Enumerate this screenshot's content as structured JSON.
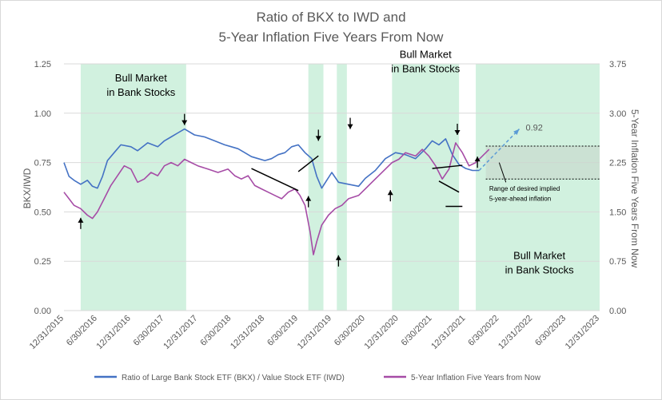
{
  "chart_data": {
    "type": "line",
    "title": [
      "Ratio of BKX to IWD and",
      "5-Year Inflation Five Years From Now"
    ],
    "ylabel": "BKX/IWD",
    "y2label": "5-Year Inflation Five Years From Now",
    "ylim": [
      0,
      1.25
    ],
    "y2lim": [
      0,
      3.75
    ],
    "y_ticks": [
      "0.00",
      "0.25",
      "0.50",
      "0.75",
      "1.00",
      "1.25"
    ],
    "y2_ticks": [
      "0.00",
      "0.75",
      "1.50",
      "2.25",
      "3.00",
      "3.75"
    ],
    "x_ticks": [
      "12/31/2015",
      "6/30/2016",
      "12/31/2016",
      "6/30/2017",
      "12/31/2017",
      "6/30/2018",
      "12/31/2018",
      "6/30/2019",
      "12/31/2019",
      "6/30/2020",
      "12/31/2020",
      "6/30/2021",
      "12/31/2021",
      "6/30/2022",
      "12/31/2022",
      "6/30/2023",
      "12/31/2023"
    ],
    "grid": true,
    "legend_position": "bottom",
    "series": [
      {
        "name": "Ratio of Large Bank Stock ETF (BKX) / Value Stock ETF (IWD)",
        "color": "#4472c4",
        "axis": "left",
        "points": [
          [
            0,
            0.75
          ],
          [
            0.15,
            0.68
          ],
          [
            0.3,
            0.66
          ],
          [
            0.5,
            0.64
          ],
          [
            0.7,
            0.66
          ],
          [
            0.85,
            0.63
          ],
          [
            1.0,
            0.62
          ],
          [
            1.15,
            0.68
          ],
          [
            1.3,
            0.76
          ],
          [
            1.5,
            0.8
          ],
          [
            1.7,
            0.84
          ],
          [
            2.0,
            0.83
          ],
          [
            2.2,
            0.81
          ],
          [
            2.5,
            0.85
          ],
          [
            2.8,
            0.83
          ],
          [
            3.0,
            0.86
          ],
          [
            3.2,
            0.88
          ],
          [
            3.4,
            0.9
          ],
          [
            3.6,
            0.92
          ],
          [
            3.9,
            0.89
          ],
          [
            4.2,
            0.88
          ],
          [
            4.5,
            0.86
          ],
          [
            4.8,
            0.84
          ],
          [
            5.0,
            0.83
          ],
          [
            5.2,
            0.82
          ],
          [
            5.4,
            0.8
          ],
          [
            5.6,
            0.78
          ],
          [
            5.8,
            0.77
          ],
          [
            6.0,
            0.76
          ],
          [
            6.2,
            0.77
          ],
          [
            6.4,
            0.79
          ],
          [
            6.6,
            0.8
          ],
          [
            6.8,
            0.83
          ],
          [
            7.0,
            0.84
          ],
          [
            7.2,
            0.8
          ],
          [
            7.4,
            0.77
          ],
          [
            7.55,
            0.68
          ],
          [
            7.7,
            0.62
          ],
          [
            7.85,
            0.66
          ],
          [
            8.0,
            0.7
          ],
          [
            8.2,
            0.65
          ],
          [
            8.5,
            0.64
          ],
          [
            8.8,
            0.63
          ],
          [
            9.0,
            0.67
          ],
          [
            9.3,
            0.71
          ],
          [
            9.6,
            0.77
          ],
          [
            9.9,
            0.8
          ],
          [
            10.2,
            0.79
          ],
          [
            10.5,
            0.77
          ],
          [
            10.8,
            0.82
          ],
          [
            11.0,
            0.86
          ],
          [
            11.2,
            0.84
          ],
          [
            11.4,
            0.87
          ],
          [
            11.6,
            0.79
          ],
          [
            11.8,
            0.74
          ],
          [
            12.0,
            0.72
          ],
          [
            12.2,
            0.71
          ],
          [
            12.4,
            0.71
          ]
        ]
      },
      {
        "name": "5-Year Inflation Five Years from Now",
        "color": "#a64ca6",
        "axis": "right",
        "points": [
          [
            0,
            1.8
          ],
          [
            0.15,
            1.7
          ],
          [
            0.3,
            1.6
          ],
          [
            0.5,
            1.55
          ],
          [
            0.7,
            1.45
          ],
          [
            0.85,
            1.4
          ],
          [
            1.0,
            1.5
          ],
          [
            1.2,
            1.7
          ],
          [
            1.4,
            1.9
          ],
          [
            1.6,
            2.05
          ],
          [
            1.8,
            2.2
          ],
          [
            2.0,
            2.15
          ],
          [
            2.2,
            1.95
          ],
          [
            2.4,
            2.0
          ],
          [
            2.6,
            2.1
          ],
          [
            2.8,
            2.05
          ],
          [
            3.0,
            2.2
          ],
          [
            3.2,
            2.25
          ],
          [
            3.4,
            2.2
          ],
          [
            3.6,
            2.3
          ],
          [
            3.8,
            2.25
          ],
          [
            4.0,
            2.2
          ],
          [
            4.3,
            2.15
          ],
          [
            4.6,
            2.1
          ],
          [
            4.9,
            2.15
          ],
          [
            5.1,
            2.05
          ],
          [
            5.3,
            2.0
          ],
          [
            5.5,
            2.05
          ],
          [
            5.7,
            1.9
          ],
          [
            5.9,
            1.85
          ],
          [
            6.1,
            1.8
          ],
          [
            6.3,
            1.75
          ],
          [
            6.5,
            1.7
          ],
          [
            6.7,
            1.8
          ],
          [
            6.9,
            1.85
          ],
          [
            7.05,
            1.75
          ],
          [
            7.2,
            1.6
          ],
          [
            7.35,
            1.2
          ],
          [
            7.45,
            0.85
          ],
          [
            7.55,
            1.05
          ],
          [
            7.7,
            1.3
          ],
          [
            7.9,
            1.45
          ],
          [
            8.1,
            1.55
          ],
          [
            8.3,
            1.6
          ],
          [
            8.5,
            1.7
          ],
          [
            8.8,
            1.75
          ],
          [
            9.0,
            1.85
          ],
          [
            9.2,
            1.95
          ],
          [
            9.4,
            2.05
          ],
          [
            9.6,
            2.15
          ],
          [
            9.8,
            2.25
          ],
          [
            10.0,
            2.3
          ],
          [
            10.2,
            2.4
          ],
          [
            10.5,
            2.35
          ],
          [
            10.7,
            2.45
          ],
          [
            10.9,
            2.35
          ],
          [
            11.1,
            2.2
          ],
          [
            11.3,
            2.0
          ],
          [
            11.5,
            2.15
          ],
          [
            11.7,
            2.55
          ],
          [
            11.9,
            2.4
          ],
          [
            12.1,
            2.2
          ],
          [
            12.3,
            2.25
          ],
          [
            12.5,
            2.35
          ],
          [
            12.7,
            2.45
          ]
        ]
      }
    ],
    "projection": {
      "label": "0.92",
      "from": [
        12.4,
        0.71
      ],
      "to": [
        13.6,
        0.92
      ]
    },
    "band": {
      "label": [
        "Range of desired implied",
        "5-year-ahead inflation"
      ],
      "range": [
        2.0,
        2.5
      ]
    },
    "shaded_periods": [
      [
        0.5,
        3.65
      ],
      [
        7.3,
        7.75
      ],
      [
        8.15,
        8.45
      ],
      [
        9.8,
        11.8
      ],
      [
        12.3,
        16
      ]
    ],
    "annotations": [
      {
        "text": [
          "Bull Market",
          "in Bank Stocks"
        ],
        "x": 2.3,
        "y": 1.16
      },
      {
        "text": [
          "Bull Market",
          "in Bank Stocks"
        ],
        "x": 10.8,
        "y": 1.28
      },
      {
        "text": [
          "Bull Market",
          "in Bank Stocks"
        ],
        "x": 14.2,
        "y": 0.26
      }
    ],
    "arrows": [
      {
        "x": 0.5,
        "y": 0.47,
        "dir": "up"
      },
      {
        "x": 3.6,
        "y": 0.94,
        "dir": "down"
      },
      {
        "x": 7.3,
        "y": 0.58,
        "dir": "up"
      },
      {
        "x": 7.6,
        "y": 0.86,
        "dir": "down"
      },
      {
        "x": 8.2,
        "y": 0.28,
        "dir": "up"
      },
      {
        "x": 8.55,
        "y": 0.92,
        "dir": "down"
      },
      {
        "x": 9.75,
        "y": 0.61,
        "dir": "up"
      },
      {
        "x": 11.75,
        "y": 0.89,
        "dir": "down"
      },
      {
        "x": 12.35,
        "y": 0.78,
        "dir": "up"
      }
    ]
  }
}
